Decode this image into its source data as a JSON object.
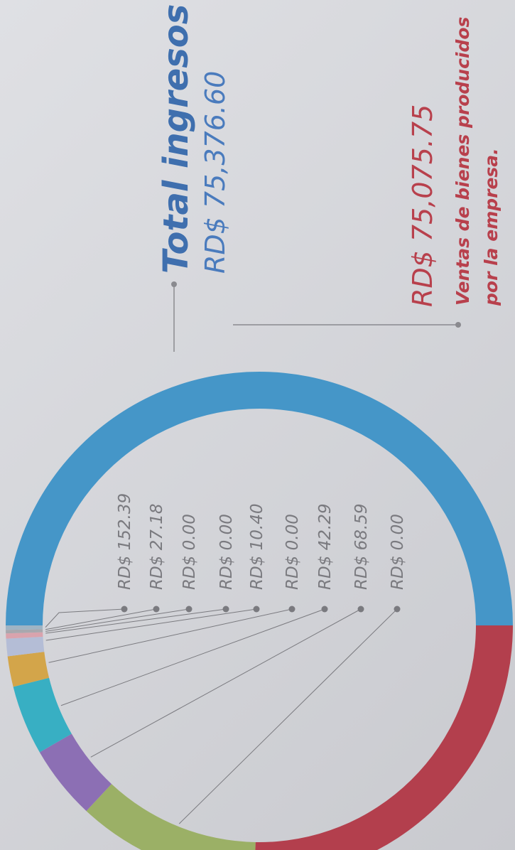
{
  "total": {
    "title": "Total ingresos",
    "amount": "RD$ 75,376.60"
  },
  "main": {
    "amount": "RD$ 75,075.75",
    "description_line1": "Ventas de bienes producidos",
    "description_line2": "por la empresa."
  },
  "items": [
    "RD$ 152.39",
    "RD$ 27.18",
    "RD$ 0.00",
    "RD$ 0.00",
    "RD$ 10.40",
    "RD$ 0.00",
    "RD$ 42.29",
    "RD$ 68.59",
    "RD$ 0.00"
  ]
}
